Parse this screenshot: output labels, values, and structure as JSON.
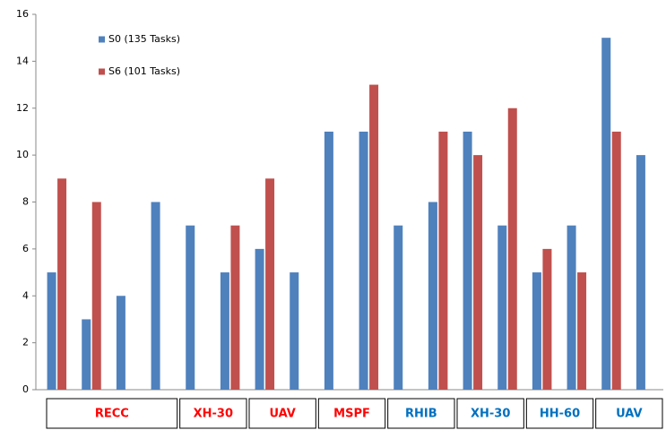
{
  "chart_data": {
    "type": "bar",
    "categories": [
      null,
      null,
      null,
      null,
      null,
      null,
      null,
      null,
      null,
      null,
      null,
      null,
      null,
      null,
      null,
      null,
      null,
      null
    ],
    "series": [
      {
        "name": "S0 (135 Tasks)",
        "color": "#4f81bd",
        "values": [
          5,
          3,
          4,
          8,
          7,
          5,
          6,
          5,
          11,
          11,
          7,
          8,
          11,
          7,
          5,
          7,
          15,
          10
        ]
      },
      {
        "name": "S6 (101 Tasks)",
        "color": "#c0504d",
        "values": [
          9,
          8,
          null,
          null,
          null,
          7,
          9,
          null,
          null,
          13,
          null,
          11,
          10,
          12,
          6,
          5,
          11,
          null
        ]
      }
    ],
    "groups": [
      {
        "label": "RECC",
        "count": 4,
        "color": "#ff0000"
      },
      {
        "label": "XH-30",
        "count": 2,
        "color": "#ff0000"
      },
      {
        "label": "UAV",
        "count": 2,
        "color": "#ff0000"
      },
      {
        "label": "MSPF",
        "count": 2,
        "color": "#ff0000"
      },
      {
        "label": "RHIB",
        "count": 2,
        "color": "#0070c0"
      },
      {
        "label": "XH-30",
        "count": 2,
        "color": "#0070c0"
      },
      {
        "label": "HH-60",
        "count": 2,
        "color": "#0070c0"
      },
      {
        "label": "UAV",
        "count": 2,
        "color": "#0070c0"
      }
    ],
    "ylim": [
      0,
      16
    ],
    "yticks": [
      0,
      2,
      4,
      6,
      8,
      10,
      12,
      14,
      16
    ],
    "grid": false,
    "legend": "top-left"
  }
}
